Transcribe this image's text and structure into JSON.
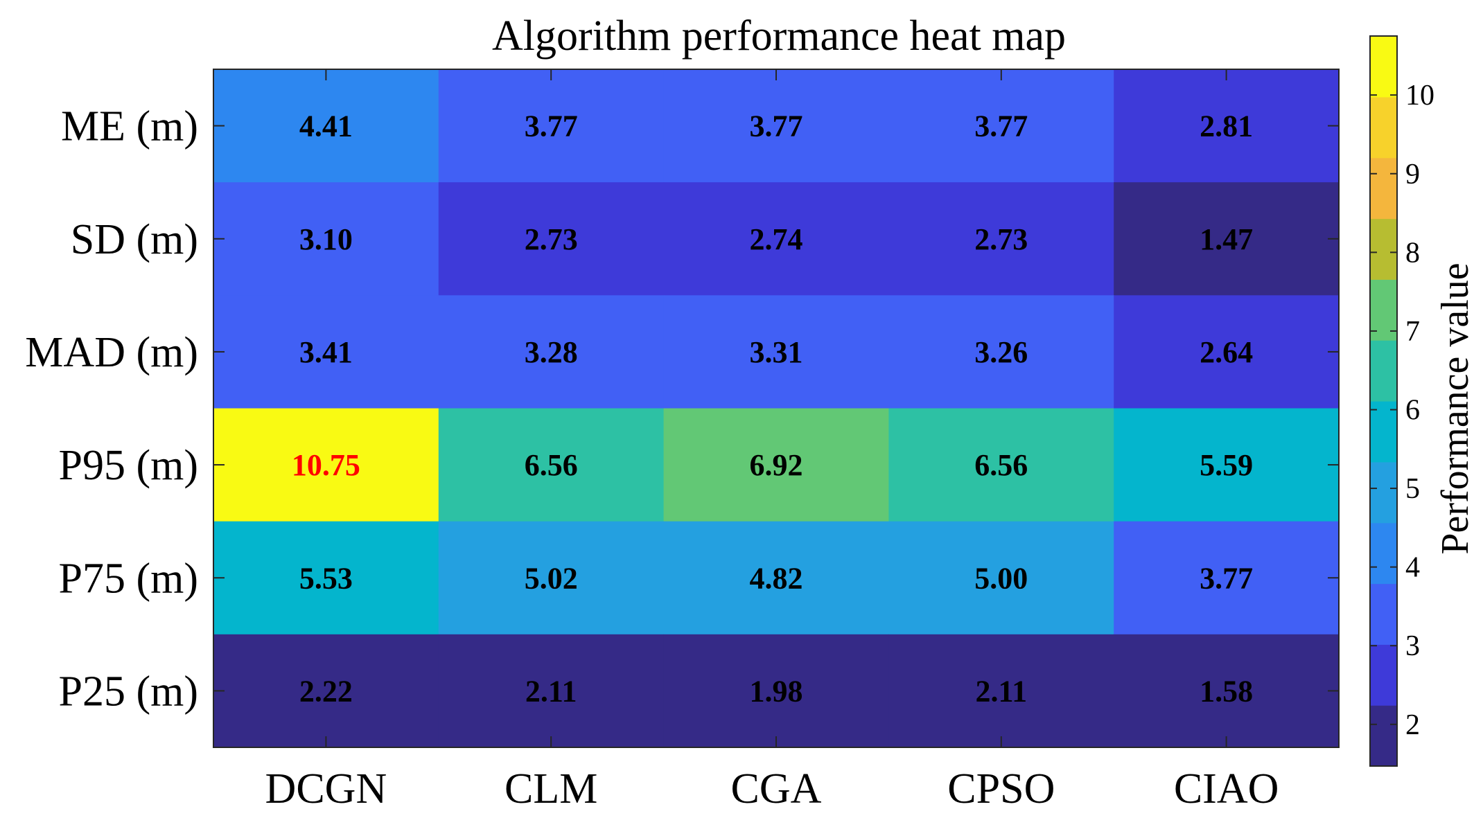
{
  "chart_data": {
    "type": "heatmap",
    "title": "Algorithm performance heat map",
    "rows": [
      "ME (m)",
      "SD (m)",
      "MAD (m)",
      "P95 (m)",
      "P75 (m)",
      "P25 (m)"
    ],
    "columns": [
      "DCGN",
      "CLM",
      "CGA",
      "CPSO",
      "CIAO"
    ],
    "values": [
      [
        4.41,
        3.77,
        3.77,
        3.77,
        2.81
      ],
      [
        3.1,
        2.73,
        2.74,
        2.73,
        1.47
      ],
      [
        3.41,
        3.28,
        3.31,
        3.26,
        2.64
      ],
      [
        10.75,
        6.56,
        6.92,
        6.56,
        5.59
      ],
      [
        5.53,
        5.02,
        4.82,
        5.0,
        3.77
      ],
      [
        2.22,
        2.11,
        1.98,
        2.11,
        1.58
      ]
    ],
    "labels": [
      [
        "4.41",
        "3.77",
        "3.77",
        "3.77",
        "2.81"
      ],
      [
        "3.10",
        "2.73",
        "2.74",
        "2.73",
        "1.47"
      ],
      [
        "3.41",
        "3.28",
        "3.31",
        "3.26",
        "2.64"
      ],
      [
        "10.75",
        "6.56",
        "6.92",
        "6.56",
        "5.59"
      ],
      [
        "5.53",
        "5.02",
        "4.82",
        "5.00",
        "3.77"
      ],
      [
        "2.22",
        "2.11",
        "1.98",
        "2.11",
        "1.58"
      ]
    ],
    "highlight": {
      "row": 3,
      "col": 0,
      "label_color": "#ff0000"
    },
    "label_color": "#000000",
    "colorbar": {
      "label": "Performance value",
      "range": [
        1.47,
        10.75
      ],
      "ticks": [
        2,
        3,
        4,
        5,
        6,
        7,
        8,
        9,
        10
      ],
      "tick_labels": [
        "2",
        "3",
        "4",
        "5",
        "6",
        "7",
        "8",
        "9",
        "10"
      ],
      "colors": [
        "#352a87",
        "#3e3ad9",
        "#4160f5",
        "#2d87f0",
        "#24a0e0",
        "#04b5cd",
        "#2dc1a4",
        "#62c875",
        "#b7bd31",
        "#f4b63d",
        "#f7d22b",
        "#f9fa13"
      ]
    },
    "grid": false
  }
}
